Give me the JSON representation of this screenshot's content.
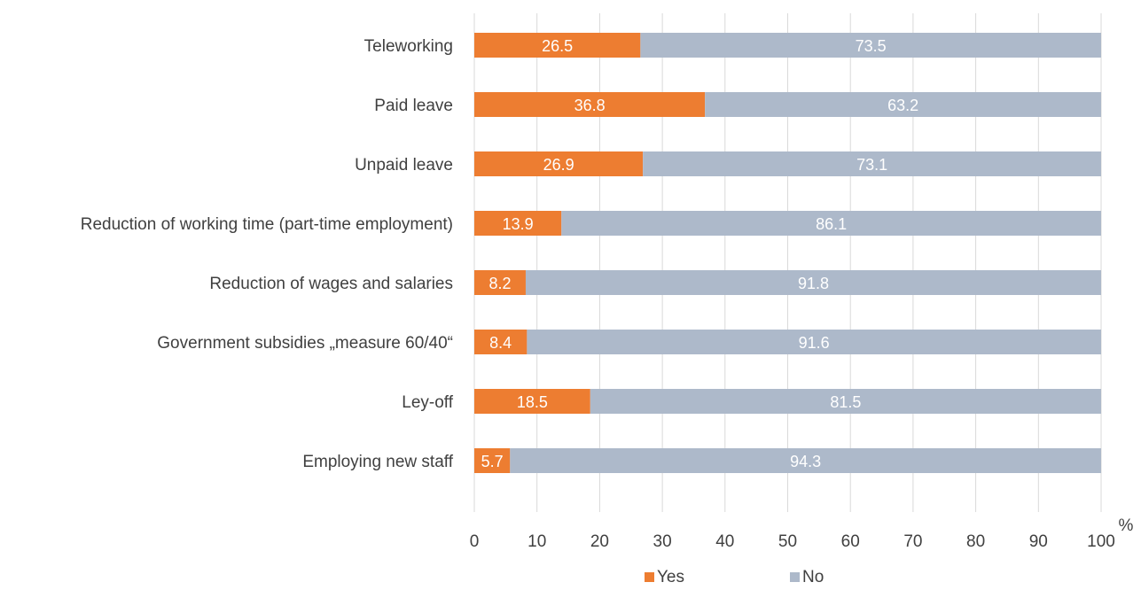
{
  "chart_data": {
    "type": "bar",
    "orientation": "horizontal",
    "stacked": true,
    "categories": [
      "Teleworking",
      "Paid leave",
      "Unpaid leave",
      "Reduction of working time (part-time employment)",
      "Reduction of wages and salaries",
      "Government subsidies „measure 60/40“",
      "Ley-off",
      "Employing new staff"
    ],
    "series": [
      {
        "name": "Yes",
        "color": "#ed7d31",
        "values": [
          26.5,
          36.8,
          26.9,
          13.9,
          8.2,
          8.4,
          18.5,
          5.7
        ]
      },
      {
        "name": "No",
        "color": "#adb9ca",
        "values": [
          73.5,
          63.2,
          73.1,
          86.1,
          91.8,
          91.6,
          81.5,
          94.3
        ]
      }
    ],
    "xlim": [
      0,
      100
    ],
    "xticks": [
      "0",
      "10",
      "20",
      "30",
      "40",
      "50",
      "60",
      "70",
      "80",
      "90",
      "100"
    ],
    "unit_label": "%",
    "grid": true,
    "legend_position": "bottom"
  }
}
